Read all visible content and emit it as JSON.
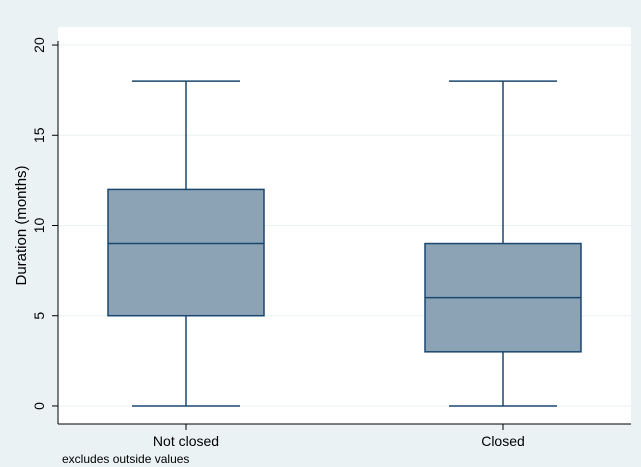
{
  "chart_data": {
    "type": "box",
    "ylabel": "Duration (months)",
    "ylim": [
      -1,
      21
    ],
    "yticks": [
      0,
      5,
      10,
      15,
      20
    ],
    "categories": [
      "Not closed",
      "Closed"
    ],
    "boxes": [
      {
        "category": "Not closed",
        "min": 0,
        "q1": 5,
        "median": 9,
        "q3": 12,
        "max": 18
      },
      {
        "category": "Closed",
        "min": 0,
        "q1": 3,
        "median": 6,
        "q3": 9,
        "max": 18
      }
    ],
    "note": "excludes outside values",
    "grid": true,
    "legend": "none"
  },
  "colors": {
    "background": "#eaf2f3",
    "plot_area": "#ffffff",
    "box_fill": "#8ca3b6",
    "box_stroke": "#1a476f",
    "grid": "#eaf2f3",
    "axis": "#000000"
  }
}
